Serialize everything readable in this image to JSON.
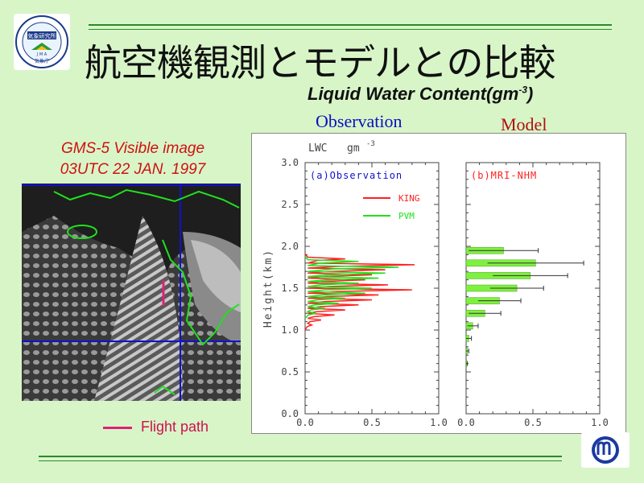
{
  "slide": {
    "title": "航空機観測とモデルとの比較",
    "subtitle_main": "Liquid Water Content(gm",
    "subtitle_exp": "-3",
    "subtitle_close": ")",
    "observation_heading": "Observation",
    "model_heading": "Model",
    "logo_left_text": "気象研究所",
    "logo_left_text2": "気象庁",
    "logo_left_text3": "J M A"
  },
  "satellite": {
    "caption_line1": "GMS-5 Visible image",
    "caption_line2": "03UTC 22 JAN. 1997",
    "legend_label": "Flight path",
    "flight_path_color": "#e0207a",
    "grid_color": "#1010d0",
    "coast_color": "#20e020"
  },
  "plot": {
    "header_left": "LWC",
    "header_unit": "gm",
    "header_exp": "-3",
    "ylabel": "Height(km)",
    "y_ticks": [
      "3.0",
      "2.5",
      "2.0",
      "1.5",
      "1.0",
      "0.5",
      "0.0"
    ],
    "x_ticks_left": [
      "0.0",
      "0.5",
      "1.0"
    ],
    "x_ticks_right": [
      "0.0",
      "0.5",
      "1.0"
    ],
    "panel_a_title": "(a)Observation",
    "panel_b_title": "(b)MRI-NHM",
    "legend_king": "KING",
    "legend_pvm": "PVM",
    "color_king": "#ff2020",
    "color_pvm": "#20e020",
    "panel_title_color": "#1010d0",
    "model_title_color": "#ff2020"
  },
  "chart_data": {
    "type": "bar",
    "ylabel": "Height(km)",
    "ylim": [
      0,
      3.0
    ],
    "xlim": [
      0,
      1.0
    ],
    "model_profile": {
      "heights_km": [
        1.95,
        1.8,
        1.65,
        1.5,
        1.35,
        1.2,
        1.05,
        0.9,
        0.75,
        0.6
      ],
      "lwc": [
        0.28,
        0.52,
        0.48,
        0.38,
        0.25,
        0.14,
        0.05,
        0.02,
        0.01,
        0.005
      ],
      "error": [
        0.26,
        0.36,
        0.28,
        0.2,
        0.16,
        0.12,
        0.04,
        0.02,
        0.01,
        0.005
      ]
    },
    "observation_profile_king": {
      "heights_km": [
        1.85,
        1.78,
        1.72,
        1.66,
        1.6,
        1.54,
        1.48,
        1.42,
        1.36,
        1.3,
        1.24,
        1.18,
        1.12,
        1.06
      ],
      "lwc": [
        0.3,
        0.82,
        0.6,
        0.5,
        0.45,
        0.62,
        0.8,
        0.55,
        0.5,
        0.4,
        0.3,
        0.22,
        0.12,
        0.05
      ]
    },
    "observation_profile_pvm": {
      "heights_km": [
        1.82,
        1.75,
        1.68,
        1.62,
        1.56,
        1.5,
        1.44,
        1.38,
        1.32,
        1.26,
        1.2
      ],
      "lwc": [
        0.4,
        0.7,
        0.6,
        0.55,
        0.4,
        0.5,
        0.45,
        0.3,
        0.25,
        0.15,
        0.08
      ]
    }
  }
}
